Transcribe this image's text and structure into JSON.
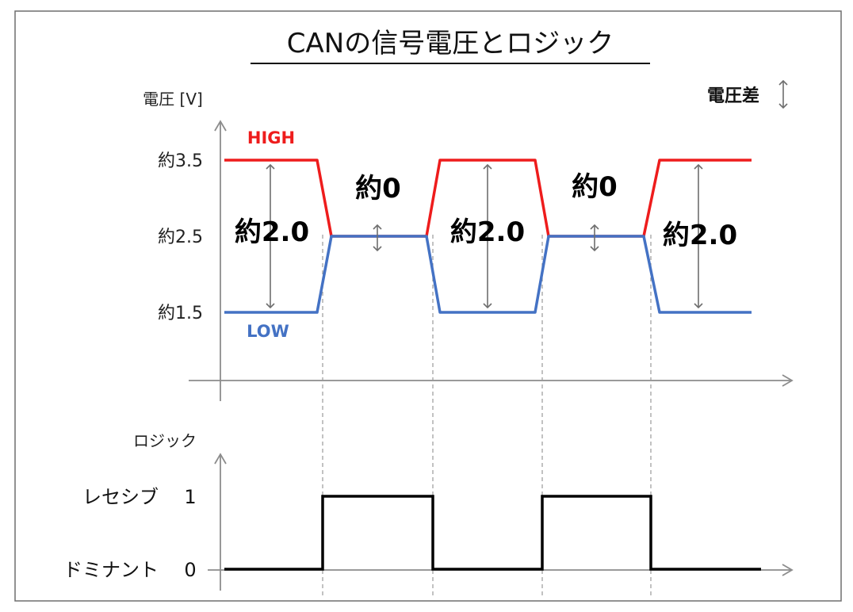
{
  "title": "CANの信号電圧とロジック",
  "voltage_chart": {
    "axis_label": "電圧 [V]",
    "legend_label": "電圧差",
    "legend_icon": "double-arrow-icon",
    "high_label": "HIGH",
    "low_label": "LOW",
    "ticks": [
      {
        "label": "約3.5",
        "value": 3.5
      },
      {
        "label": "約2.5",
        "value": 2.5
      },
      {
        "label": "約1.5",
        "value": 1.5
      }
    ],
    "diff_labels": [
      "約2.0",
      "約0",
      "約2.0",
      "約0",
      "約2.0"
    ],
    "colors": {
      "high": "#ee1c1c",
      "low": "#4472c4",
      "axis": "#8c8c8c",
      "arrow": "#6e6e6e"
    }
  },
  "logic_chart": {
    "axis_label": "ロジック",
    "levels": [
      {
        "name": "レセシブ",
        "value_label": "1",
        "value": 1
      },
      {
        "name": "ドミナント",
        "value_label": "0",
        "value": 0
      }
    ],
    "sequence": [
      0,
      1,
      0,
      1,
      0
    ],
    "color": "#000000"
  },
  "chart_data": {
    "type": "line",
    "series": [
      {
        "name": "HIGH",
        "values": [
          3.5,
          2.5,
          3.5,
          2.5,
          3.5
        ]
      },
      {
        "name": "LOW",
        "values": [
          1.5,
          2.5,
          1.5,
          2.5,
          1.5
        ]
      }
    ],
    "logic": [
      0,
      1,
      0,
      1,
      0
    ],
    "ylabel": "電圧 [V]"
  }
}
